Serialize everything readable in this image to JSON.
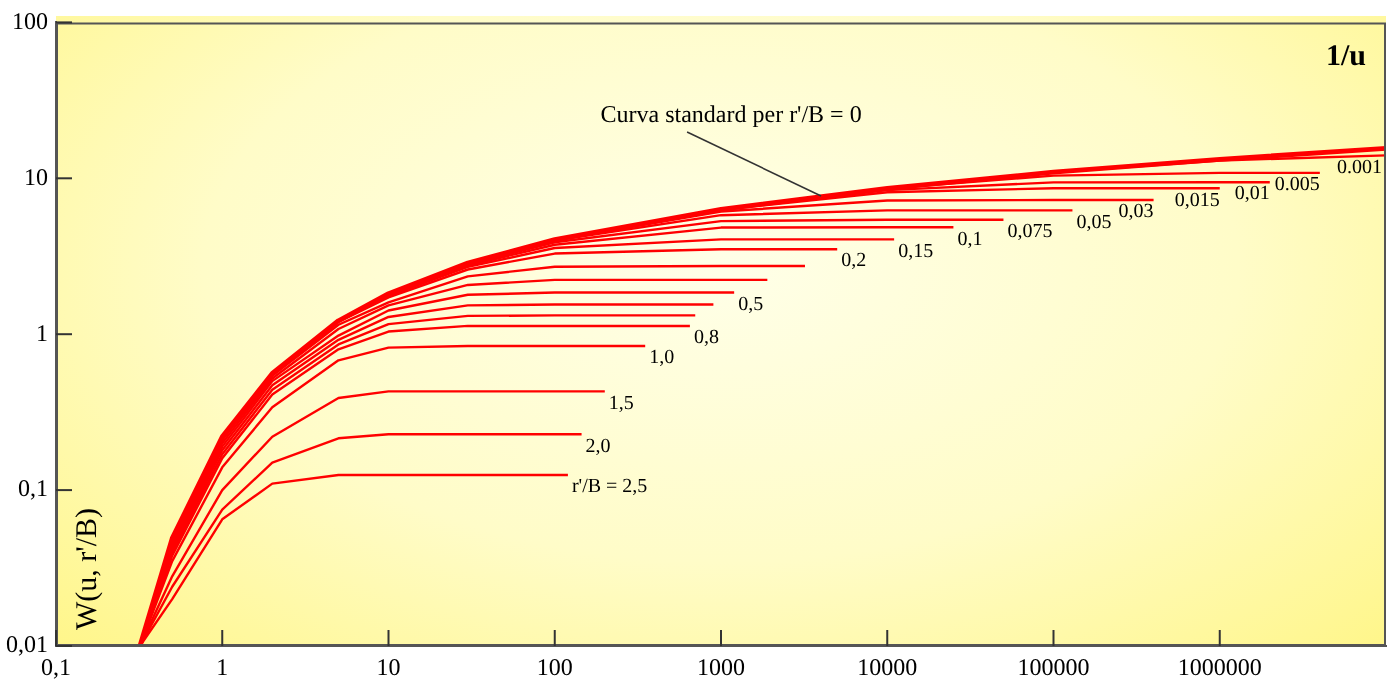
{
  "chart_data": {
    "type": "line",
    "xlabel": "1/u",
    "ylabel": "W(u, r'/B)",
    "log": "xy",
    "grid": false,
    "legend": false,
    "marker": "none",
    "line_style": "solid",
    "xlim": [
      0.1,
      10000000
    ],
    "xticks": [
      {
        "value": 0.1,
        "label": "0,1"
      },
      1,
      10,
      100,
      1000,
      10000,
      100000,
      1000000
    ],
    "ylim": [
      0.01,
      100
    ],
    "yticks": [
      {
        "value": 0.01,
        "label": "0,01"
      },
      {
        "value": 0.1,
        "label": "0,1"
      },
      1,
      10,
      100
    ],
    "annotations": [
      {
        "text": "Curva standard per r'/B = 0",
        "x": 4000,
        "y": 7.7
      }
    ],
    "series": [
      {
        "color": "#ff0000",
        "x": [
          0.32,
          0.5,
          1,
          2,
          5,
          10,
          30,
          100,
          1000,
          10000,
          100000,
          1000000,
          10000000
        ],
        "values": [
          0.01,
          0.049,
          0.22,
          0.56,
          1.22,
          1.82,
          2.86,
          4.04,
          6.33,
          8.63,
          10.94,
          13.24,
          15.54
        ]
      },
      {
        "name": "0.001",
        "color": "#ff0000",
        "x": [
          0.32,
          0.5,
          1,
          2,
          5,
          10,
          30,
          100,
          1000,
          10000,
          100000,
          1000000,
          10000000
        ],
        "values": [
          0.01,
          0.049,
          0.22,
          0.56,
          1.22,
          1.82,
          2.86,
          4.04,
          6.33,
          8.63,
          10.92,
          13.0,
          14.03
        ]
      },
      {
        "name": "0.005",
        "color": "#ff0000",
        "x": [
          0.32,
          0.5,
          1,
          2,
          5,
          10,
          30,
          100,
          1000,
          10000,
          100000,
          1000000,
          4000000
        ],
        "values": [
          0.01,
          0.049,
          0.22,
          0.56,
          1.22,
          1.82,
          2.86,
          4.04,
          6.33,
          8.59,
          10.4,
          10.83,
          10.83
        ]
      },
      {
        "name": "0,01",
        "color": "#ff0000",
        "x": [
          0.32,
          0.5,
          1,
          2,
          5,
          10,
          30,
          100,
          1000,
          10000,
          100000,
          1000000,
          2000000
        ],
        "values": [
          0.01,
          0.049,
          0.22,
          0.56,
          1.22,
          1.82,
          2.86,
          4.04,
          6.31,
          8.4,
          9.42,
          9.44,
          9.44
        ]
      },
      {
        "name": "0,015",
        "color": "#ff0000",
        "x": [
          0.32,
          0.5,
          1,
          2,
          5,
          10,
          30,
          100,
          1000,
          10000,
          100000,
          1000000
        ],
        "values": [
          0.01,
          0.049,
          0.22,
          0.56,
          1.22,
          1.82,
          2.86,
          4.03,
          6.28,
          8.14,
          8.63,
          8.63
        ]
      },
      {
        "name": "0,03",
        "color": "#ff0000",
        "x": [
          0.32,
          0.5,
          1,
          2,
          5,
          10,
          30,
          100,
          1000,
          10000,
          100000,
          400000
        ],
        "values": [
          0.01,
          0.049,
          0.22,
          0.56,
          1.22,
          1.82,
          2.86,
          4.01,
          6.12,
          7.21,
          7.25,
          7.25
        ]
      },
      {
        "name": "0,05",
        "color": "#ff0000",
        "x": [
          0.32,
          0.5,
          1,
          2,
          5,
          10,
          30,
          100,
          1000,
          10000,
          130000
        ],
        "values": [
          0.01,
          0.049,
          0.22,
          0.56,
          1.22,
          1.82,
          2.81,
          3.99,
          5.8,
          6.23,
          6.23
        ]
      },
      {
        "name": "0,075",
        "color": "#ff0000",
        "x": [
          0.32,
          0.5,
          1,
          2,
          5,
          10,
          30,
          100,
          1000,
          10000,
          50000
        ],
        "values": [
          0.01,
          0.049,
          0.22,
          0.56,
          1.22,
          1.8,
          2.8,
          3.89,
          5.31,
          5.42,
          5.42
        ]
      },
      {
        "name": "0,1",
        "color": "#ff0000",
        "x": [
          0.32,
          0.5,
          1,
          2,
          5,
          10,
          30,
          100,
          1000,
          10000,
          25000
        ],
        "values": [
          0.01,
          0.049,
          0.22,
          0.56,
          1.22,
          1.8,
          2.76,
          3.75,
          4.83,
          4.85,
          4.85
        ]
      },
      {
        "name": "0,15",
        "color": "#ff0000",
        "x": [
          0.32,
          0.5,
          1,
          2,
          5,
          10,
          30,
          100,
          1000,
          11000
        ],
        "values": [
          0.01,
          0.048,
          0.22,
          0.55,
          1.21,
          1.76,
          2.7,
          3.57,
          4.06,
          4.06
        ]
      },
      {
        "name": "0,2",
        "color": "#ff0000",
        "x": [
          0.32,
          0.5,
          1,
          2,
          5,
          10,
          30,
          100,
          1000,
          5000
        ],
        "values": [
          0.01,
          0.048,
          0.21,
          0.55,
          1.2,
          1.72,
          2.6,
          3.29,
          3.51,
          3.51
        ]
      },
      {
        "color": "#ff0000",
        "x": [
          0.32,
          0.5,
          1,
          2,
          5,
          10,
          30,
          100,
          1000,
          3200
        ],
        "values": [
          0.01,
          0.046,
          0.21,
          0.54,
          1.15,
          1.6,
          2.35,
          2.71,
          2.74,
          2.74
        ]
      },
      {
        "color": "#ff0000",
        "x": [
          0.32,
          0.5,
          1,
          2,
          5,
          10,
          30,
          100,
          1900
        ],
        "values": [
          0.01,
          0.045,
          0.2,
          0.52,
          1.08,
          1.53,
          2.07,
          2.23,
          2.23
        ]
      },
      {
        "name": "0,5",
        "color": "#ff0000",
        "x": [
          0.32,
          0.5,
          1,
          2,
          5,
          10,
          30,
          100,
          1200
        ],
        "values": [
          0.01,
          0.044,
          0.19,
          0.5,
          0.98,
          1.42,
          1.79,
          1.85,
          1.85
        ]
      },
      {
        "color": "#ff0000",
        "x": [
          0.32,
          0.5,
          1,
          2,
          5,
          10,
          30,
          100,
          900
        ],
        "values": [
          0.01,
          0.042,
          0.18,
          0.47,
          0.92,
          1.29,
          1.53,
          1.55,
          1.55
        ]
      },
      {
        "color": "#ff0000",
        "x": [
          0.32,
          0.5,
          1,
          2,
          5,
          10,
          30,
          100,
          700
        ],
        "values": [
          0.01,
          0.04,
          0.17,
          0.44,
          0.86,
          1.16,
          1.31,
          1.32,
          1.32
        ]
      },
      {
        "name": "0,8",
        "color": "#ff0000",
        "x": [
          0.32,
          0.5,
          1,
          2,
          5,
          10,
          30,
          100,
          650
        ],
        "values": [
          0.01,
          0.038,
          0.16,
          0.41,
          0.8,
          1.04,
          1.13,
          1.13,
          1.13
        ]
      },
      {
        "name": "1,0",
        "color": "#ff0000",
        "x": [
          0.32,
          0.5,
          1,
          2,
          5,
          10,
          30,
          350
        ],
        "values": [
          0.01,
          0.035,
          0.14,
          0.34,
          0.68,
          0.82,
          0.84,
          0.84
        ]
      },
      {
        "name": "1,5",
        "color": "#ff0000",
        "x": [
          0.32,
          0.5,
          1,
          2,
          5,
          10,
          200
        ],
        "values": [
          0.01,
          0.028,
          0.1,
          0.22,
          0.39,
          0.43,
          0.43
        ]
      },
      {
        "name": "2,0",
        "color": "#ff0000",
        "x": [
          0.32,
          0.5,
          1,
          2,
          5,
          10,
          145
        ],
        "values": [
          0.01,
          0.024,
          0.075,
          0.15,
          0.215,
          0.228,
          0.228
        ]
      },
      {
        "name": "r'/B = 2,5",
        "color": "#ff0000",
        "x": [
          0.32,
          0.5,
          1,
          2,
          5,
          120
        ],
        "values": [
          0.01,
          0.02,
          0.065,
          0.11,
          0.125,
          0.125
        ]
      }
    ]
  }
}
